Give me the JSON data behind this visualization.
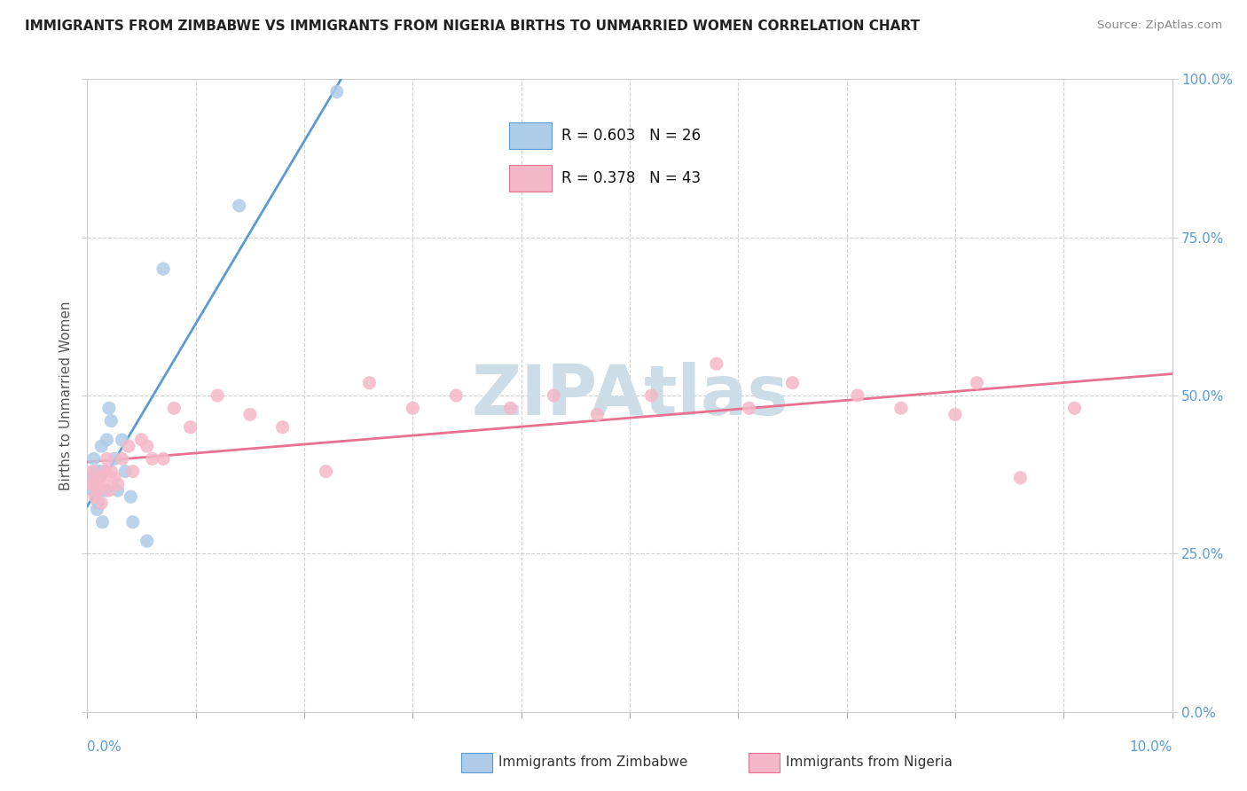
{
  "title": "IMMIGRANTS FROM ZIMBABWE VS IMMIGRANTS FROM NIGERIA BIRTHS TO UNMARRIED WOMEN CORRELATION CHART",
  "source": "Source: ZipAtlas.com",
  "ylabel": "Births to Unmarried Women",
  "legend_label1": "Immigrants from Zimbabwe",
  "legend_label2": "Immigrants from Nigeria",
  "r1": 0.603,
  "n1": 26,
  "r2": 0.378,
  "n2": 43,
  "color1": "#aecce8",
  "color2": "#f5b8c8",
  "line_color1": "#5b9bd5",
  "line_color2": "#e87090",
  "watermark": "ZIPAtlas",
  "watermark_color": "#ccdde8",
  "xmin": 0.0,
  "xmax": 10.0,
  "ymin": 0.0,
  "ymax": 100.0,
  "yticks": [
    0.0,
    25.0,
    50.0,
    75.0,
    100.0
  ],
  "xticks": [
    0.0,
    1.0,
    2.0,
    3.0,
    4.0,
    5.0,
    6.0,
    7.0,
    8.0,
    9.0,
    10.0
  ],
  "zimbabwe_x": [
    0.03,
    0.05,
    0.06,
    0.07,
    0.08,
    0.09,
    0.1,
    0.11,
    0.12,
    0.13,
    0.14,
    0.15,
    0.17,
    0.18,
    0.2,
    0.22,
    0.25,
    0.28,
    0.32,
    0.35,
    0.4,
    0.42,
    0.55,
    0.7,
    1.4,
    2.3
  ],
  "zimbabwe_y": [
    37,
    35,
    40,
    38,
    36,
    32,
    33,
    38,
    35,
    42,
    30,
    38,
    35,
    43,
    48,
    46,
    40,
    35,
    43,
    38,
    34,
    30,
    27,
    70,
    80,
    98
  ],
  "nigeria_x": [
    0.03,
    0.05,
    0.07,
    0.08,
    0.1,
    0.12,
    0.13,
    0.15,
    0.17,
    0.18,
    0.2,
    0.22,
    0.25,
    0.28,
    0.32,
    0.38,
    0.42,
    0.5,
    0.55,
    0.6,
    0.7,
    0.8,
    0.95,
    1.2,
    1.5,
    1.8,
    2.2,
    2.6,
    3.0,
    3.4,
    3.9,
    4.3,
    4.7,
    5.2,
    5.8,
    6.1,
    6.5,
    7.1,
    7.5,
    8.0,
    8.2,
    8.6,
    9.1
  ],
  "nigeria_y": [
    36,
    38,
    34,
    36,
    35,
    37,
    33,
    36,
    38,
    40,
    35,
    38,
    37,
    36,
    40,
    42,
    38,
    43,
    42,
    40,
    40,
    48,
    45,
    50,
    47,
    45,
    38,
    52,
    48,
    50,
    48,
    50,
    47,
    50,
    55,
    48,
    52,
    50,
    48,
    47,
    52,
    37,
    48
  ],
  "background_color": "#ffffff",
  "grid_color": "#cccccc"
}
